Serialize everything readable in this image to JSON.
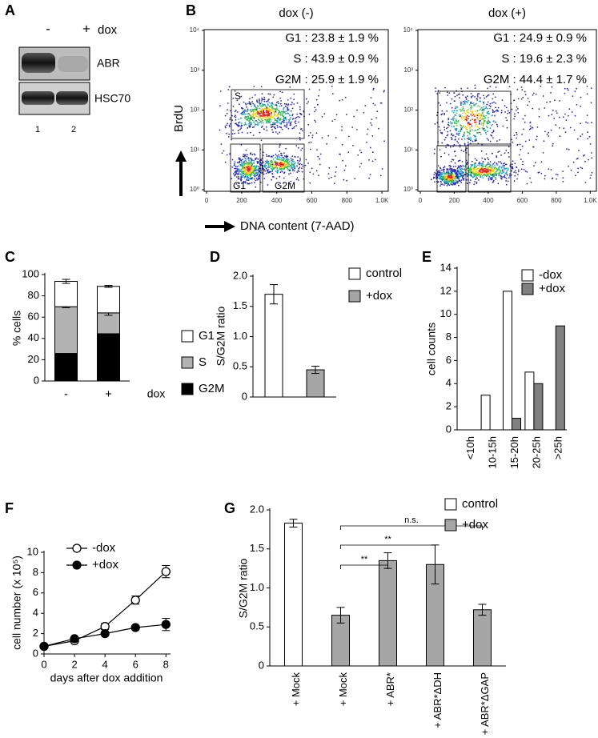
{
  "blot": {
    "panel": "A",
    "lanes": [
      "-",
      "+"
    ],
    "treatment": "dox",
    "bands": [
      "ABR",
      "HSC70"
    ],
    "lane_numbers": [
      "1",
      "2"
    ]
  },
  "flow": {
    "panel": "B",
    "y_label": "BrdU",
    "x_label": "DNA content (7-AAD)",
    "log_y": true,
    "xlim": [
      -14,
      1036
    ],
    "xticks": [
      0,
      200,
      400,
      600,
      800,
      {
        "value": 1000,
        "label": "1.0K"
      }
    ],
    "ylim": [
      1,
      10000
    ],
    "yticks": [
      {
        "value": 1,
        "label": "10⁰"
      },
      {
        "value": 10,
        "label": "10¹"
      },
      {
        "value": 100,
        "label": "10²"
      },
      {
        "value": 1000,
        "label": "10³"
      },
      {
        "value": 10000,
        "label": "10⁴"
      }
    ],
    "plots": [
      {
        "title": "dox (-)",
        "stats": [
          "G1 : 23.8 ± 1.9 %",
          "S : 43.9 ± 0.9 %",
          "G2M : 25.9 ± 1.9 %"
        ],
        "gate_labels": [
          "S",
          "G1",
          "G2M"
        ]
      },
      {
        "title": "dox (+)",
        "stats": [
          "G1 : 24.9 ± 0.9 %",
          "S : 19.6 ± 2.3 %",
          "G2M : 44.4 ± 1.7 %"
        ]
      }
    ]
  },
  "chart_data": [
    {
      "panel": "C",
      "type": "bar",
      "stacked": true,
      "y_label": "% cells",
      "x_label": "dox",
      "categories": [
        "-",
        "+"
      ],
      "ylim": [
        0,
        100
      ],
      "yticks": [
        0,
        20,
        40,
        60,
        80,
        100
      ],
      "series": [
        {
          "name": "G2M",
          "color": "#000000",
          "values": [
            25.9,
            44.4
          ],
          "errors": [
            1.9,
            1.7
          ]
        },
        {
          "name": "S",
          "color": "#b3b3b3",
          "values": [
            43.9,
            19.6
          ],
          "errors": [
            0.9,
            2.3
          ]
        },
        {
          "name": "G1",
          "color": "#ffffff",
          "values": [
            23.8,
            24.9
          ],
          "errors": [
            1.9,
            0.9
          ]
        }
      ]
    },
    {
      "panel": "D",
      "type": "bar",
      "y_label": "S/G2M ratio",
      "categories": [
        null,
        null
      ],
      "ylim": [
        0,
        2
      ],
      "yticks": [
        0,
        0.5,
        {
          "value": 1,
          "label": "1.0"
        },
        1.5,
        {
          "value": 2,
          "label": "2.0"
        }
      ],
      "series": [
        {
          "name": "control",
          "color": "#ffffff",
          "values": [
            1.7,
            null
          ],
          "errors": [
            0.16,
            null
          ]
        },
        {
          "name": "+dox",
          "color": "#a6a6a6",
          "values": [
            null,
            0.45
          ],
          "errors": [
            null,
            0.06
          ]
        }
      ]
    },
    {
      "panel": "E",
      "type": "bar",
      "y_label": "cell counts",
      "categories": [
        "<10h",
        "10-15h",
        "15-20h",
        "20-25h",
        ">25h"
      ],
      "ylim": [
        0,
        14
      ],
      "yticks": [
        0,
        2,
        4,
        6,
        8,
        10,
        12,
        14
      ],
      "series": [
        {
          "name": "-dox",
          "color": "#ffffff",
          "values": [
            0,
            3,
            12,
            5,
            0
          ]
        },
        {
          "name": "+dox",
          "color": "#808080",
          "values": [
            0,
            0,
            1,
            4,
            9
          ]
        }
      ]
    },
    {
      "panel": "F",
      "type": "line",
      "y_label": "cell number (x 10⁵)",
      "x_label": "days after dox addition",
      "x": [
        0,
        2,
        4,
        6,
        8
      ],
      "xlim": [
        0,
        8.3
      ],
      "xticks": [
        0,
        2,
        4,
        6,
        8
      ],
      "ylim": [
        0,
        10
      ],
      "yticks": [
        0,
        2,
        4,
        6,
        8,
        10
      ],
      "series": [
        {
          "name": "-dox",
          "color": "#ffffff",
          "values": [
            0.75,
            1.3,
            2.7,
            5.3,
            8.1
          ],
          "errors": [
            0.1,
            0.15,
            0.3,
            0.4,
            0.6
          ]
        },
        {
          "name": "+dox",
          "color": "#000000",
          "values": [
            0.75,
            1.5,
            2.0,
            2.6,
            2.9
          ],
          "errors": [
            0.1,
            0.1,
            0.15,
            0.15,
            0.6
          ]
        }
      ]
    },
    {
      "panel": "G",
      "type": "bar",
      "y_label": "S/G2M ratio",
      "categories": [
        "+ Mock",
        "+ Mock",
        "+ ABR*",
        "+ ABR*ΔDH",
        "+ ABR*ΔGAP"
      ],
      "ylim": [
        0,
        2
      ],
      "yticks": [
        0,
        0.5,
        {
          "value": 1,
          "label": "1.0"
        },
        1.5,
        {
          "value": 2,
          "label": "2.0"
        }
      ],
      "annotations": [
        "n.s.",
        "**",
        "**"
      ],
      "series": [
        {
          "name": "control",
          "color": "#ffffff",
          "values": [
            1.83,
            null,
            null,
            null,
            null
          ],
          "errors": [
            0.05,
            null,
            null,
            null,
            null
          ]
        },
        {
          "name": "+dox",
          "color": "#a6a6a6",
          "values": [
            null,
            0.65,
            1.35,
            1.3,
            0.72
          ],
          "errors": [
            null,
            0.1,
            0.1,
            0.25,
            0.07
          ]
        }
      ]
    }
  ]
}
